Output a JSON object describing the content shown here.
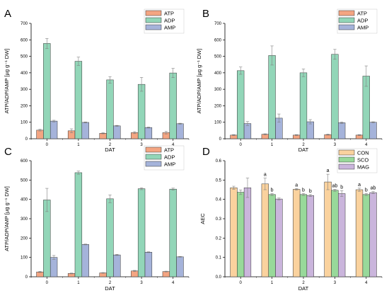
{
  "colors": {
    "ATP": "#F4A582",
    "ADP": "#92D6B8",
    "AMP": "#A5B3DA",
    "CON": "#FAD29E",
    "SCO": "#98D99A",
    "MAG": "#CAB5DC",
    "error": "#808080",
    "axis": "#000000"
  },
  "chart_data": [
    {
      "panel": "A",
      "type": "bar",
      "xlabel": "DAT",
      "ylabel": "ATP/ADP/AMP [µg g⁻¹ DW]",
      "ylim": [
        0,
        700
      ],
      "yticks": [
        0,
        100,
        200,
        300,
        400,
        500,
        600,
        700
      ],
      "categories": [
        "0",
        "1",
        "2",
        "3",
        "4"
      ],
      "legend_position": "top-right",
      "series": [
        {
          "name": "ATP",
          "values": [
            52,
            48,
            33,
            37,
            37
          ],
          "errors": [
            5,
            12,
            3,
            6,
            8
          ]
        },
        {
          "name": "ADP",
          "values": [
            578,
            470,
            357,
            330,
            399
          ],
          "errors": [
            30,
            25,
            20,
            42,
            28
          ]
        },
        {
          "name": "AMP",
          "values": [
            107,
            99,
            78,
            68,
            91
          ],
          "errors": [
            5,
            3,
            3,
            3,
            3
          ]
        }
      ]
    },
    {
      "panel": "B",
      "type": "bar",
      "xlabel": "DAT",
      "ylabel": "ATP/ADP/AMP [µg g⁻¹ DW]",
      "ylim": [
        0,
        700
      ],
      "yticks": [
        0,
        100,
        200,
        300,
        400,
        500,
        600,
        700
      ],
      "categories": [
        "0",
        "1",
        "2",
        "3",
        "4"
      ],
      "legend_position": "top-right",
      "series": [
        {
          "name": "ATP",
          "values": [
            22,
            27,
            22,
            25,
            22
          ],
          "errors": [
            3,
            3,
            3,
            3,
            3
          ]
        },
        {
          "name": "ADP",
          "values": [
            413,
            505,
            400,
            512,
            380
          ],
          "errors": [
            22,
            58,
            23,
            30,
            62
          ]
        },
        {
          "name": "AMP",
          "values": [
            92,
            125,
            103,
            97,
            100
          ],
          "errors": [
            12,
            25,
            13,
            5,
            3
          ]
        }
      ]
    },
    {
      "panel": "C",
      "type": "bar",
      "xlabel": "DAT",
      "ylabel": "ATP/ADP/AMP [µg g⁻¹ DW]",
      "ylim": [
        0,
        600
      ],
      "yticks": [
        0,
        100,
        200,
        300,
        400,
        500,
        600
      ],
      "categories": [
        "0",
        "1",
        "2",
        "3",
        "4"
      ],
      "legend_position": "top-right",
      "series": [
        {
          "name": "ATP",
          "values": [
            25,
            17,
            20,
            30,
            27
          ],
          "errors": [
            3,
            2,
            2,
            3,
            2
          ]
        },
        {
          "name": "ADP",
          "values": [
            397,
            538,
            403,
            455,
            453
          ],
          "errors": [
            60,
            8,
            20,
            5,
            5
          ]
        },
        {
          "name": "AMP",
          "values": [
            100,
            167,
            113,
            127,
            103
          ],
          "errors": [
            10,
            2,
            3,
            2,
            2
          ]
        }
      ]
    },
    {
      "panel": "D",
      "type": "bar",
      "xlabel": "DAT",
      "ylabel": "AEC",
      "ylim": [
        0,
        0.6
      ],
      "yticks": [
        "0.0",
        "0.1",
        "0.2",
        "0.3",
        "0.4",
        "0.5",
        "0.6"
      ],
      "categories": [
        "0",
        "1",
        "2",
        "3",
        "4"
      ],
      "legend_position": "top-right",
      "series": [
        {
          "name": "CON",
          "values": [
            0.46,
            0.48,
            0.452,
            0.49,
            0.45
          ],
          "errors": [
            0.008,
            0.03,
            0.004,
            0.04,
            0.008
          ],
          "labels": [
            "",
            "a",
            "a",
            "a",
            "a"
          ]
        },
        {
          "name": "SCO",
          "values": [
            0.437,
            0.425,
            0.425,
            0.447,
            0.425
          ],
          "errors": [
            0.012,
            0.005,
            0.005,
            0.005,
            0.005
          ],
          "labels": [
            "",
            "b",
            "b",
            "ab",
            "b"
          ]
        },
        {
          "name": "MAG",
          "values": [
            0.46,
            0.402,
            0.42,
            0.43,
            0.435
          ],
          "errors": [
            0.05,
            0.005,
            0.005,
            0.015,
            0.005
          ],
          "labels": [
            "",
            "",
            "b",
            "b",
            "ab"
          ]
        }
      ]
    }
  ]
}
